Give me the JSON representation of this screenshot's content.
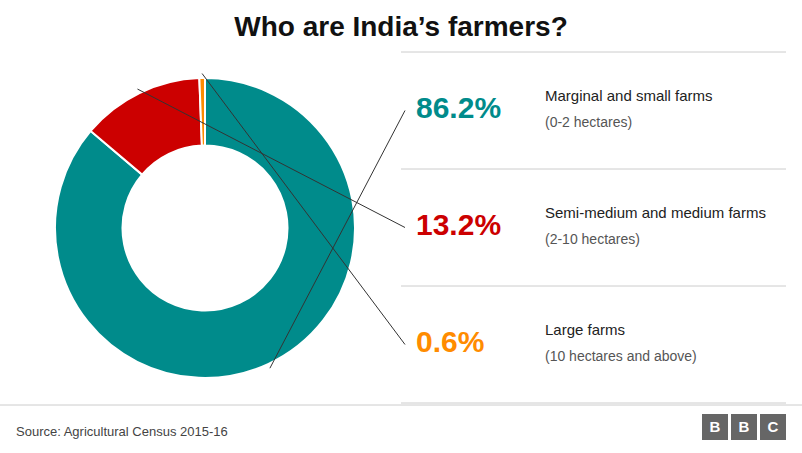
{
  "chart_data": {
    "type": "pie",
    "title": "Who are India’s farmers?",
    "categories": [
      "Marginal and small farms",
      "Semi-medium and medium farms",
      "Large farms"
    ],
    "annotations": [
      "(0-2 hectares)",
      "(2-10 hectares)",
      "(10 hectares and above)"
    ],
    "values": [
      86.2,
      13.2,
      0.6
    ],
    "value_labels": [
      "86.2%",
      "13.2%",
      "0.6%"
    ],
    "data_labels": true,
    "colors": [
      "#008b8b",
      "#cc0000",
      "#ff8c00"
    ],
    "source": "Source: Agricultural Census 2015-16",
    "logo": "BBC"
  }
}
